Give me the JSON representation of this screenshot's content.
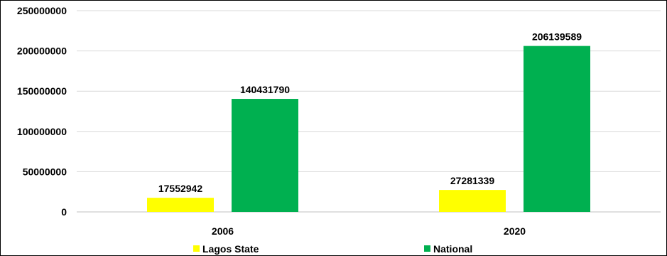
{
  "chart_data": {
    "type": "bar",
    "categories": [
      "2006",
      "2020"
    ],
    "series": [
      {
        "name": "Lagos State",
        "color": "#FFFF00",
        "values": [
          17552942,
          27281339
        ]
      },
      {
        "name": "National",
        "color": "#00B050",
        "values": [
          140431790,
          206139589
        ]
      }
    ],
    "y_ticks": [
      "0",
      "50000000",
      "100000000",
      "150000000",
      "200000000",
      "250000000"
    ],
    "ylim": [
      0,
      250000000
    ],
    "grid": true,
    "legend_position": "bottom",
    "data_labels": true
  }
}
